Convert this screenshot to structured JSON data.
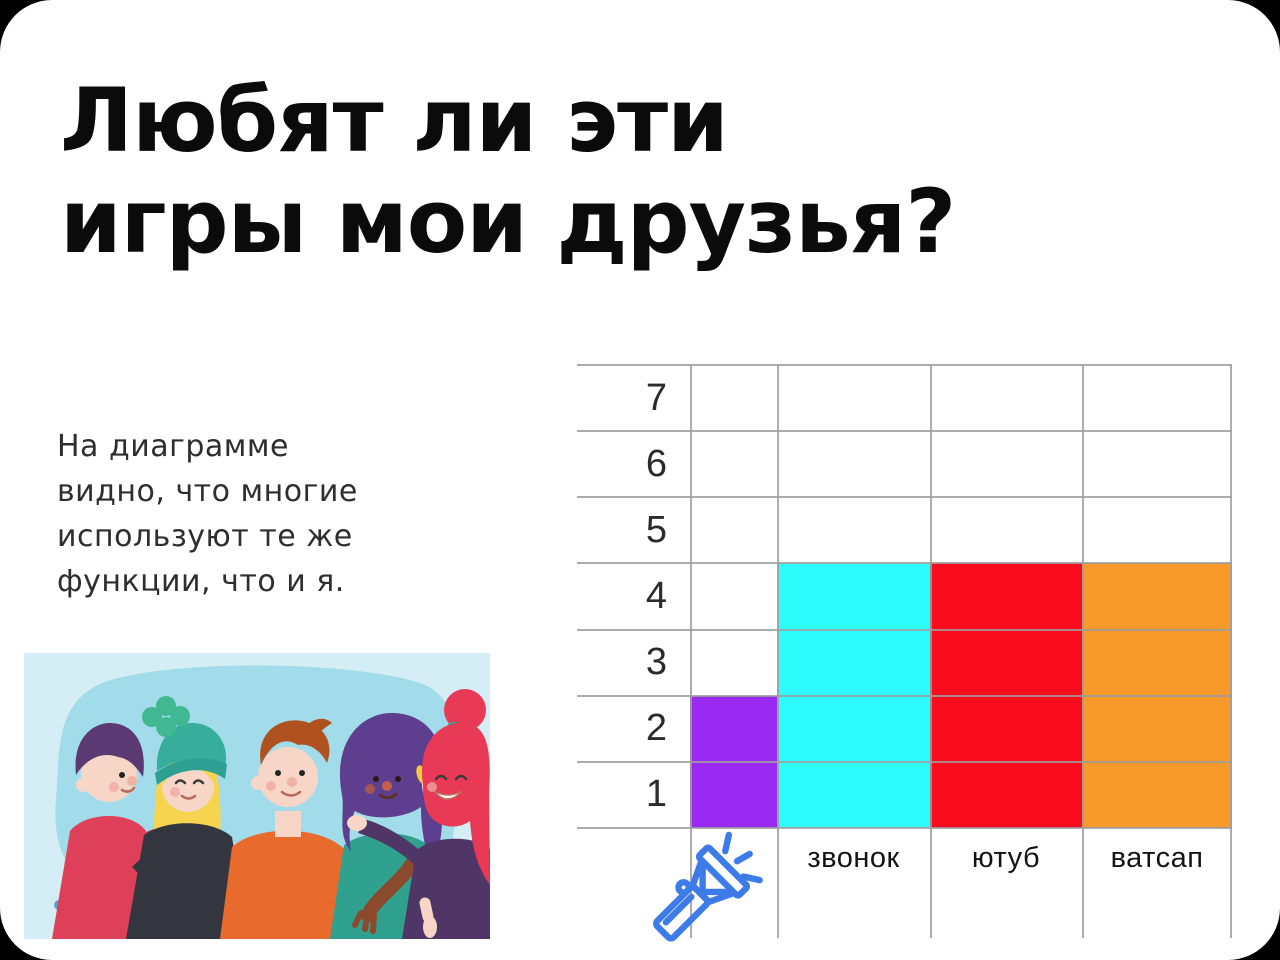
{
  "page": {
    "background": "#000000",
    "card_color": "#ffffff"
  },
  "title": {
    "line1": "Любят ли эти",
    "line2": "игры мои друзья?",
    "color": "#0b0b0b"
  },
  "description": {
    "lines": [
      "На диаграмме",
      "видно, что многие",
      "используют те же",
      "функции, что и я."
    ],
    "color": "#2e2e2e"
  },
  "illustration": {
    "subject": "five-friends-hugging-behind-ledge",
    "background_color": "#d5edf5",
    "blob_color": "#a2dbe9",
    "ledge_color": "#58a0cc"
  },
  "chart_data": {
    "type": "bar",
    "title": "",
    "xlabel": "",
    "ylabel": "",
    "categories": [
      {
        "label": "",
        "icon": "flashlight-icon"
      },
      {
        "label": "звонок"
      },
      {
        "label": "ютуб"
      },
      {
        "label": "ватсап"
      }
    ],
    "values": [
      2,
      4,
      4,
      4
    ],
    "colors": [
      "#9a2af2",
      "#2efcfc",
      "#f90c1d",
      "#f8992c"
    ],
    "y_ticks": [
      7,
      6,
      5,
      4,
      3,
      2,
      1
    ],
    "ylim": [
      0,
      7
    ],
    "grid": true,
    "gridline_color": "#9e9e9e",
    "tick_color": "#2b2b2b",
    "label_color": "#141414",
    "icon_color": "#3d7ce8",
    "legend_position": "none"
  }
}
